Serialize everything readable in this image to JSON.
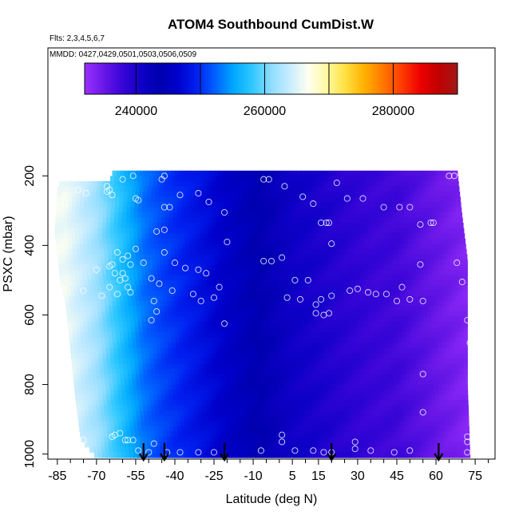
{
  "chart_data": {
    "type": "heatmap",
    "title": "ATOM4 Southbound CumDist.W",
    "subtitle_flights": "Flts: 2,3,4,5,6,7",
    "subtitle_dates": "MMDD: 0427,0429,0501,0503,0506,0509",
    "xlabel": "Latitude (deg N)",
    "ylabel": "PSXC (mbar)",
    "xlim": [
      -88,
      82
    ],
    "ylim": [
      1010,
      80
    ],
    "x_ticks": [
      -85,
      -70,
      -55,
      -40,
      -25,
      -10,
      5,
      15,
      30,
      45,
      60,
      75
    ],
    "x_minor_ticks": [
      -80,
      -75,
      -65,
      -60,
      -50,
      -45,
      -35,
      -30,
      -20,
      -15,
      -5,
      0,
      10,
      20,
      25,
      35,
      40,
      50,
      55,
      65,
      70,
      80
    ],
    "y_ticks": [
      200,
      400,
      600,
      800,
      1000
    ],
    "colorbar": {
      "range": [
        232000,
        290000
      ],
      "ticks": [
        240000,
        260000,
        280000
      ],
      "tick_labels": [
        "240000",
        "260000",
        "280000"
      ],
      "dividers": [
        250000,
        270000
      ],
      "colors": [
        "#9b30ff",
        "#6a18e8",
        "#3a05d8",
        "#0f00c8",
        "#0000b0",
        "#0000cc",
        "#0020f0",
        "#0060ff",
        "#00a8ff",
        "#30c8ff",
        "#8fdcff",
        "#c8ecff",
        "#fffff0",
        "#fff8a0",
        "#ffe040",
        "#ffb000",
        "#ff7800",
        "#ff3c00",
        "#ee0000",
        "#c00000",
        "#a01818"
      ]
    },
    "field": {
      "cumdist_at_lat": [
        {
          "lat": -82,
          "value": 266000
        },
        {
          "lat": -70,
          "value": 262000
        },
        {
          "lat": -60,
          "value": 257000
        },
        {
          "lat": -52,
          "value": 253000
        },
        {
          "lat": -45,
          "value": 251000
        },
        {
          "lat": -35,
          "value": 249000
        },
        {
          "lat": -25,
          "value": 247000
        },
        {
          "lat": -15,
          "value": 245000
        },
        {
          "lat": -5,
          "value": 243000
        },
        {
          "lat": 5,
          "value": 241000
        },
        {
          "lat": 15,
          "value": 240000
        },
        {
          "lat": 25,
          "value": 239000
        },
        {
          "lat": 35,
          "value": 238000
        },
        {
          "lat": 45,
          "value": 237500
        },
        {
          "lat": 55,
          "value": 236000
        },
        {
          "lat": 65,
          "value": 234500
        },
        {
          "lat": 72,
          "value": 233500
        }
      ],
      "left_edge": [
        {
          "p": 200,
          "lat": -82
        },
        {
          "p": 230,
          "lat": -85
        },
        {
          "p": 360,
          "lat": -86
        },
        {
          "p": 500,
          "lat": -84
        },
        {
          "p": 560,
          "lat": -82
        },
        {
          "p": 700,
          "lat": -80
        },
        {
          "p": 850,
          "lat": -78
        },
        {
          "p": 960,
          "lat": -76
        },
        {
          "p": 1010,
          "lat": -70
        }
      ],
      "right_edge": [
        {
          "p": 180,
          "lat": 68
        },
        {
          "p": 320,
          "lat": 70
        },
        {
          "p": 440,
          "lat": 72
        },
        {
          "p": 600,
          "lat": 72
        },
        {
          "p": 800,
          "lat": 72
        },
        {
          "p": 1010,
          "lat": 73
        }
      ],
      "top_edge": [
        {
          "lat": -85,
          "p": 210
        },
        {
          "lat": -65,
          "p": 210
        },
        {
          "lat": -62,
          "p": 180
        },
        {
          "lat": 72,
          "p": 180
        }
      ]
    },
    "points": [
      {
        "lat": -77,
        "p": 240
      },
      {
        "lat": -74,
        "p": 250
      },
      {
        "lat": -66,
        "p": 230
      },
      {
        "lat": -66,
        "p": 245
      },
      {
        "lat": -65,
        "p": 240
      },
      {
        "lat": -64,
        "p": 255
      },
      {
        "lat": -60,
        "p": 210
      },
      {
        "lat": -56,
        "p": 200
      },
      {
        "lat": -55,
        "p": 265
      },
      {
        "lat": -54,
        "p": 270
      },
      {
        "lat": -44,
        "p": 200
      },
      {
        "lat": -45,
        "p": 210
      },
      {
        "lat": -44,
        "p": 290
      },
      {
        "lat": -42,
        "p": 290
      },
      {
        "lat": -38,
        "p": 255
      },
      {
        "lat": -31,
        "p": 250
      },
      {
        "lat": -27,
        "p": 275
      },
      {
        "lat": -21,
        "p": 305
      },
      {
        "lat": -6,
        "p": 210
      },
      {
        "lat": -4,
        "p": 210
      },
      {
        "lat": 2,
        "p": 230
      },
      {
        "lat": 9,
        "p": 260
      },
      {
        "lat": 13,
        "p": 280
      },
      {
        "lat": 22,
        "p": 220
      },
      {
        "lat": 26,
        "p": 265
      },
      {
        "lat": 32,
        "p": 265
      },
      {
        "lat": 40,
        "p": 290
      },
      {
        "lat": 46,
        "p": 290
      },
      {
        "lat": 50,
        "p": 290
      },
      {
        "lat": 54,
        "p": 340
      },
      {
        "lat": 58,
        "p": 335
      },
      {
        "lat": 59,
        "p": 335
      },
      {
        "lat": 65,
        "p": 200
      },
      {
        "lat": 67,
        "p": 200
      },
      {
        "lat": 16,
        "p": 335
      },
      {
        "lat": 18,
        "p": 335
      },
      {
        "lat": 19,
        "p": 335
      },
      {
        "lat": 20,
        "p": 395
      },
      {
        "lat": -20,
        "p": 390
      },
      {
        "lat": -47,
        "p": 360
      },
      {
        "lat": -44,
        "p": 355
      },
      {
        "lat": -55,
        "p": 410
      },
      {
        "lat": -58,
        "p": 430
      },
      {
        "lat": -62,
        "p": 420
      },
      {
        "lat": -60,
        "p": 440
      },
      {
        "lat": -57,
        "p": 455
      },
      {
        "lat": -52,
        "p": 450
      },
      {
        "lat": -44,
        "p": 420
      },
      {
        "lat": -40,
        "p": 450
      },
      {
        "lat": -36,
        "p": 465
      },
      {
        "lat": -31,
        "p": 470
      },
      {
        "lat": -28,
        "p": 480
      },
      {
        "lat": -6,
        "p": 445
      },
      {
        "lat": -3,
        "p": 445
      },
      {
        "lat": 1,
        "p": 435
      },
      {
        "lat": -70,
        "p": 470
      },
      {
        "lat": -65,
        "p": 460
      },
      {
        "lat": -64,
        "p": 455
      },
      {
        "lat": -63,
        "p": 480
      },
      {
        "lat": -61,
        "p": 500
      },
      {
        "lat": -60,
        "p": 480
      },
      {
        "lat": -59,
        "p": 495
      },
      {
        "lat": -49,
        "p": 495
      },
      {
        "lat": -46,
        "p": 510
      },
      {
        "lat": 6,
        "p": 500
      },
      {
        "lat": 11,
        "p": 500
      },
      {
        "lat": 3,
        "p": 550
      },
      {
        "lat": -75,
        "p": 530
      },
      {
        "lat": -68,
        "p": 545
      },
      {
        "lat": -65,
        "p": 520
      },
      {
        "lat": -62,
        "p": 540
      },
      {
        "lat": -58,
        "p": 520
      },
      {
        "lat": -57,
        "p": 535
      },
      {
        "lat": -48,
        "p": 560
      },
      {
        "lat": -47,
        "p": 590
      },
      {
        "lat": -49,
        "p": 615
      },
      {
        "lat": -41,
        "p": 530
      },
      {
        "lat": -33,
        "p": 540
      },
      {
        "lat": -30,
        "p": 560
      },
      {
        "lat": -23,
        "p": 520
      },
      {
        "lat": -25,
        "p": 550
      },
      {
        "lat": -21,
        "p": 625
      },
      {
        "lat": 8,
        "p": 555
      },
      {
        "lat": 14,
        "p": 570
      },
      {
        "lat": 16,
        "p": 555
      },
      {
        "lat": 20,
        "p": 545
      },
      {
        "lat": 27,
        "p": 530
      },
      {
        "lat": 30,
        "p": 525
      },
      {
        "lat": 34,
        "p": 535
      },
      {
        "lat": 37,
        "p": 540
      },
      {
        "lat": 41,
        "p": 540
      },
      {
        "lat": 45,
        "p": 560
      },
      {
        "lat": 47,
        "p": 520
      },
      {
        "lat": 50,
        "p": 555
      },
      {
        "lat": 55,
        "p": 560
      },
      {
        "lat": 14,
        "p": 595
      },
      {
        "lat": 17,
        "p": 600
      },
      {
        "lat": 19,
        "p": 595
      },
      {
        "lat": 68,
        "p": 450
      },
      {
        "lat": 70,
        "p": 505
      },
      {
        "lat": 54,
        "p": 455
      },
      {
        "lat": 72,
        "p": 615
      },
      {
        "lat": 73,
        "p": 680
      },
      {
        "lat": 55,
        "p": 770
      },
      {
        "lat": 55,
        "p": 880
      },
      {
        "lat": -63,
        "p": 945
      },
      {
        "lat": -64,
        "p": 950
      },
      {
        "lat": -61,
        "p": 940
      },
      {
        "lat": -59,
        "p": 960
      },
      {
        "lat": -58,
        "p": 960
      },
      {
        "lat": -56,
        "p": 960
      },
      {
        "lat": -75,
        "p": 960
      },
      {
        "lat": -54,
        "p": 990
      },
      {
        "lat": -50,
        "p": 995
      },
      {
        "lat": -48,
        "p": 970
      },
      {
        "lat": -43,
        "p": 995
      },
      {
        "lat": -38,
        "p": 995
      },
      {
        "lat": -31,
        "p": 995
      },
      {
        "lat": -25,
        "p": 995
      },
      {
        "lat": -7,
        "p": 990
      },
      {
        "lat": 1,
        "p": 945
      },
      {
        "lat": 1,
        "p": 965
      },
      {
        "lat": 6,
        "p": 990
      },
      {
        "lat": 13,
        "p": 990
      },
      {
        "lat": 17,
        "p": 995
      },
      {
        "lat": 20,
        "p": 995
      },
      {
        "lat": 29,
        "p": 965
      },
      {
        "lat": 29,
        "p": 985
      },
      {
        "lat": 35,
        "p": 990
      },
      {
        "lat": 44,
        "p": 995
      },
      {
        "lat": 50,
        "p": 990
      },
      {
        "lat": 72,
        "p": 950
      },
      {
        "lat": 72,
        "p": 965
      },
      {
        "lat": 72,
        "p": 995
      }
    ],
    "arrows_lat": [
      -52,
      -44,
      -21,
      20,
      61
    ]
  }
}
